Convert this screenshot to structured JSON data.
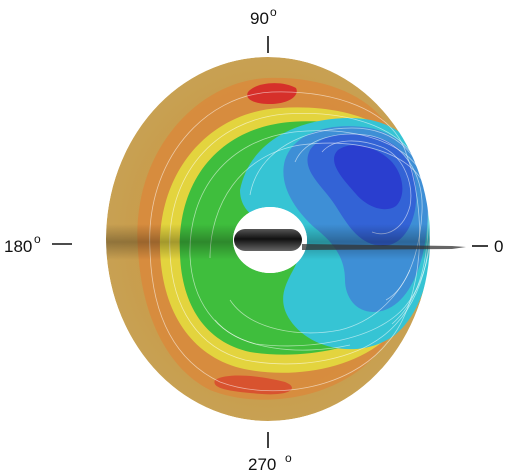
{
  "angle_labels": {
    "top": "90",
    "left": "180",
    "right": "0",
    "bottom": "270",
    "degree_symbol": "o"
  },
  "colors": {
    "outer_warm": "#c9a04a",
    "orange": "#d98b3a",
    "red": "#d8312a",
    "yellow": "#e6dc3c",
    "green": "#3fc13a",
    "cyan": "#35c2d6",
    "light_blue": "#3f8fd8",
    "deep_blue": "#2a3ed0",
    "hub": "#2a2a2a"
  }
}
